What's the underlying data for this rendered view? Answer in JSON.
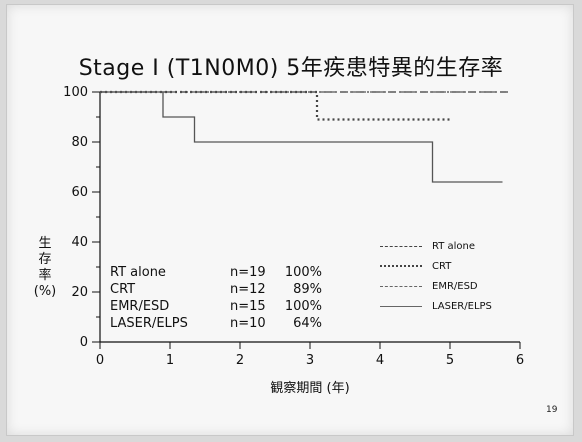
{
  "chart_data": {
    "type": "line",
    "title": "Stage I (T1N0M0) 5年疾患特異的生存率",
    "xlabel": "観察期間 (年)",
    "ylabel": "生\n存\n率\n(%)",
    "xlim": [
      0,
      6
    ],
    "ylim": [
      0,
      100
    ],
    "x_ticks": [
      "0",
      "1",
      "2",
      "3",
      "4",
      "5",
      "6"
    ],
    "y_ticks": [
      "0",
      "20",
      "40",
      "60",
      "80",
      "100"
    ],
    "series": [
      {
        "name": "RT alone",
        "style": "dashdot",
        "x": [
          0,
          5.85
        ],
        "y": [
          100,
          100
        ]
      },
      {
        "name": "CRT",
        "style": "dotted",
        "x": [
          0,
          3.1,
          3.1,
          5.0
        ],
        "y": [
          100,
          100,
          89,
          89
        ]
      },
      {
        "name": "EMR/ESD",
        "style": "dashed",
        "x": [
          0,
          5.85
        ],
        "y": [
          100,
          100
        ]
      },
      {
        "name": "LASER/ELPS",
        "style": "solid",
        "x": [
          0,
          0.9,
          0.9,
          1.35,
          1.35,
          4.75,
          4.75,
          5.75
        ],
        "y": [
          100,
          100,
          90,
          90,
          80,
          80,
          64,
          64
        ]
      }
    ],
    "annotations": [
      {
        "name": "RT alone",
        "n": "n=19",
        "rate": "100%"
      },
      {
        "name": "CRT",
        "n": "n=12",
        "rate": "89%"
      },
      {
        "name": "EMR/ESD",
        "n": "n=15",
        "rate": "100%"
      },
      {
        "name": "LASER/ELPS",
        "n": "n=10",
        "rate": "64%"
      }
    ],
    "legend": [
      {
        "label": "RT alone",
        "style": "dashdot"
      },
      {
        "label": "CRT",
        "style": "dotted"
      },
      {
        "label": "EMR/ESD",
        "style": "dashed"
      },
      {
        "label": "LASER/ELPS",
        "style": "solid"
      }
    ],
    "legend_position": "lower-right",
    "grid": false
  },
  "slide": {
    "page_number": "19"
  }
}
